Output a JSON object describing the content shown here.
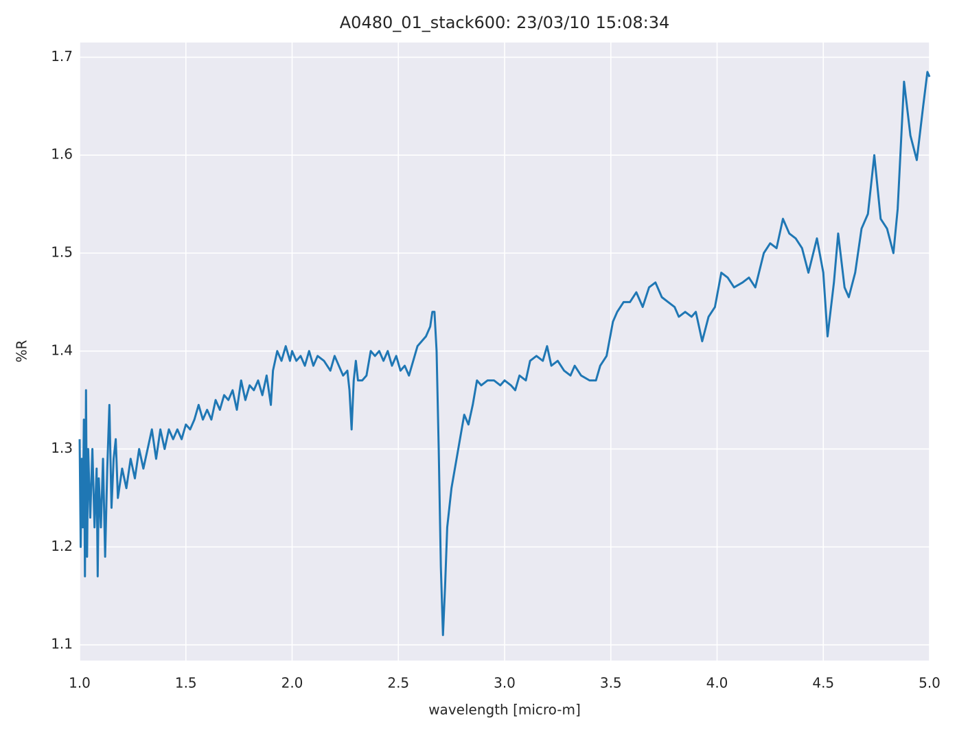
{
  "chart_data": {
    "type": "line",
    "title": "A0480_01_stack600:  23/03/10 15:08:34",
    "xlabel": "wavelength [micro-m]",
    "ylabel": "%R",
    "color": "#1f77b4",
    "grid": true,
    "xlim": [
      1.0,
      5.0
    ],
    "ylim": [
      1.084,
      1.715
    ],
    "xticks": [
      {
        "value": 1.0,
        "label": "1.0"
      },
      {
        "value": 1.5,
        "label": "1.5"
      },
      {
        "value": 2.0,
        "label": "2.0"
      },
      {
        "value": 2.5,
        "label": "2.5"
      },
      {
        "value": 3.0,
        "label": "3.0"
      },
      {
        "value": 3.5,
        "label": "3.5"
      },
      {
        "value": 4.0,
        "label": "4.0"
      },
      {
        "value": 4.5,
        "label": "4.5"
      },
      {
        "value": 5.0,
        "label": "5.0"
      }
    ],
    "yticks": [
      1.1,
      1.2,
      1.3,
      1.4,
      1.5,
      1.6,
      1.7
    ],
    "x": [
      1.0,
      1.005,
      1.01,
      1.015,
      1.02,
      1.025,
      1.03,
      1.035,
      1.04,
      1.05,
      1.06,
      1.07,
      1.08,
      1.085,
      1.09,
      1.1,
      1.11,
      1.12,
      1.13,
      1.14,
      1.15,
      1.16,
      1.17,
      1.18,
      1.2,
      1.22,
      1.24,
      1.26,
      1.28,
      1.3,
      1.32,
      1.34,
      1.36,
      1.38,
      1.4,
      1.42,
      1.44,
      1.46,
      1.48,
      1.5,
      1.52,
      1.54,
      1.56,
      1.58,
      1.6,
      1.62,
      1.64,
      1.66,
      1.68,
      1.7,
      1.72,
      1.74,
      1.76,
      1.78,
      1.8,
      1.82,
      1.84,
      1.86,
      1.88,
      1.9,
      1.91,
      1.93,
      1.95,
      1.97,
      1.99,
      2.0,
      2.02,
      2.04,
      2.06,
      2.08,
      2.1,
      2.12,
      2.15,
      2.18,
      2.2,
      2.22,
      2.24,
      2.26,
      2.27,
      2.28,
      2.29,
      2.3,
      2.31,
      2.33,
      2.35,
      2.37,
      2.39,
      2.41,
      2.43,
      2.45,
      2.47,
      2.49,
      2.51,
      2.53,
      2.55,
      2.57,
      2.59,
      2.61,
      2.63,
      2.65,
      2.66,
      2.67,
      2.68,
      2.69,
      2.7,
      2.71,
      2.72,
      2.73,
      2.75,
      2.77,
      2.79,
      2.81,
      2.83,
      2.85,
      2.87,
      2.89,
      2.92,
      2.95,
      2.98,
      3.0,
      3.03,
      3.05,
      3.07,
      3.1,
      3.12,
      3.15,
      3.18,
      3.2,
      3.22,
      3.25,
      3.28,
      3.31,
      3.33,
      3.36,
      3.4,
      3.43,
      3.45,
      3.48,
      3.51,
      3.53,
      3.56,
      3.59,
      3.62,
      3.65,
      3.68,
      3.71,
      3.74,
      3.77,
      3.8,
      3.82,
      3.85,
      3.88,
      3.9,
      3.93,
      3.96,
      3.99,
      4.02,
      4.05,
      4.08,
      4.12,
      4.15,
      4.18,
      4.22,
      4.25,
      4.28,
      4.31,
      4.34,
      4.37,
      4.4,
      4.43,
      4.47,
      4.5,
      4.52,
      4.55,
      4.57,
      4.6,
      4.62,
      4.65,
      4.68,
      4.71,
      4.74,
      4.77,
      4.8,
      4.83,
      4.85,
      4.88,
      4.91,
      4.94,
      4.97,
      4.99,
      5.0
    ],
    "values": [
      1.31,
      1.2,
      1.29,
      1.22,
      1.33,
      1.17,
      1.36,
      1.19,
      1.3,
      1.23,
      1.3,
      1.22,
      1.28,
      1.17,
      1.27,
      1.22,
      1.29,
      1.19,
      1.28,
      1.345,
      1.24,
      1.29,
      1.31,
      1.25,
      1.28,
      1.26,
      1.29,
      1.27,
      1.3,
      1.28,
      1.3,
      1.32,
      1.29,
      1.32,
      1.3,
      1.32,
      1.31,
      1.32,
      1.31,
      1.325,
      1.32,
      1.33,
      1.345,
      1.33,
      1.34,
      1.33,
      1.35,
      1.34,
      1.355,
      1.35,
      1.36,
      1.34,
      1.37,
      1.35,
      1.365,
      1.36,
      1.37,
      1.355,
      1.375,
      1.345,
      1.38,
      1.4,
      1.39,
      1.405,
      1.39,
      1.4,
      1.39,
      1.395,
      1.385,
      1.4,
      1.385,
      1.395,
      1.39,
      1.38,
      1.395,
      1.385,
      1.375,
      1.38,
      1.36,
      1.32,
      1.37,
      1.39,
      1.37,
      1.37,
      1.375,
      1.4,
      1.395,
      1.4,
      1.39,
      1.4,
      1.385,
      1.395,
      1.38,
      1.385,
      1.375,
      1.39,
      1.405,
      1.41,
      1.415,
      1.425,
      1.44,
      1.44,
      1.4,
      1.3,
      1.18,
      1.11,
      1.16,
      1.22,
      1.26,
      1.285,
      1.31,
      1.335,
      1.325,
      1.345,
      1.37,
      1.365,
      1.37,
      1.37,
      1.365,
      1.37,
      1.365,
      1.36,
      1.375,
      1.37,
      1.39,
      1.395,
      1.39,
      1.405,
      1.385,
      1.39,
      1.38,
      1.375,
      1.385,
      1.375,
      1.37,
      1.37,
      1.385,
      1.395,
      1.43,
      1.44,
      1.45,
      1.45,
      1.46,
      1.445,
      1.465,
      1.47,
      1.455,
      1.45,
      1.445,
      1.435,
      1.44,
      1.435,
      1.44,
      1.41,
      1.435,
      1.445,
      1.48,
      1.475,
      1.465,
      1.47,
      1.475,
      1.465,
      1.5,
      1.51,
      1.505,
      1.535,
      1.52,
      1.515,
      1.505,
      1.48,
      1.515,
      1.48,
      1.415,
      1.47,
      1.52,
      1.465,
      1.455,
      1.48,
      1.525,
      1.54,
      1.6,
      1.535,
      1.525,
      1.5,
      1.545,
      1.675,
      1.62,
      1.595,
      1.65,
      1.685,
      1.68
    ]
  }
}
